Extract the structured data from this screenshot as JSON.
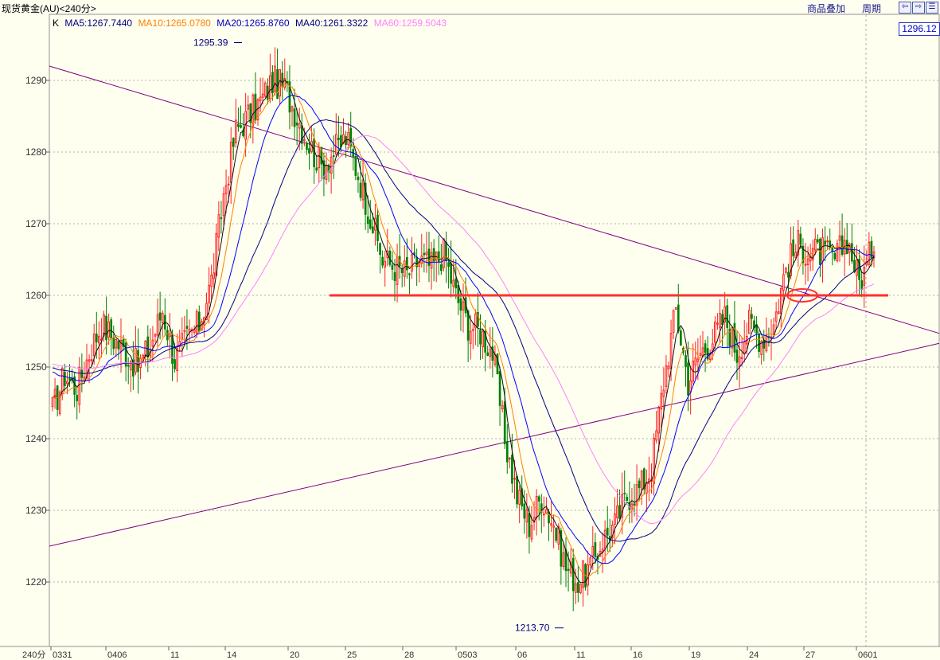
{
  "header": {
    "title": "现货黄金(AU)<240分>",
    "overlay_label": "商品叠加",
    "period_label": "周期",
    "nav_buttons": [
      "⇦",
      "⇨",
      "☰"
    ]
  },
  "legend": {
    "k_label": "K",
    "ma5": "MA5:1267.7440",
    "ma10": "MA10:1265.0780",
    "ma20": "MA20:1265.8760",
    "ma40": "MA40:1261.3322",
    "ma60": "MA60:1259.5043"
  },
  "colors": {
    "up": "#ff2020",
    "down": "#008000",
    "ma5": "#101010",
    "ma10": "#ff8000",
    "ma20": "#0000ff",
    "ma40": "#000080",
    "ma60": "#ff80ff",
    "trendline": "#800080",
    "support": "#ff3030",
    "grid": "#b0b0b0",
    "axis_text": "#333333"
  },
  "current_price": "1296.12",
  "chart_data": {
    "type": "candlestick",
    "title": "",
    "ylim": [
      1212,
      1298
    ],
    "yticks": [
      1220,
      1230,
      1240,
      1250,
      1260,
      1270,
      1280,
      1290
    ],
    "x_first_label": "240分",
    "x_tick_labels": [
      "0331",
      "0406",
      "11",
      "14",
      "20",
      "25",
      "28",
      "0503",
      "06",
      "11",
      "16",
      "19",
      "24",
      "27",
      "0601"
    ],
    "grid": "dashed horizontal",
    "annotations": {
      "high": {
        "label": "1295.39",
        "value": 1295.39
      },
      "low": {
        "label": "1213.70",
        "value": 1213.7
      }
    },
    "horizontal_line": {
      "value": 1260
    },
    "close_anchors": [
      [
        0,
        1244
      ],
      [
        5,
        1249
      ],
      [
        10,
        1247
      ],
      [
        15,
        1252
      ],
      [
        20,
        1256
      ],
      [
        25,
        1254
      ],
      [
        30,
        1252
      ],
      [
        35,
        1250
      ],
      [
        40,
        1253
      ],
      [
        45,
        1258
      ],
      [
        50,
        1251
      ],
      [
        55,
        1254
      ],
      [
        60,
        1256
      ],
      [
        65,
        1262
      ],
      [
        70,
        1274
      ],
      [
        75,
        1283
      ],
      [
        80,
        1285
      ],
      [
        85,
        1287
      ],
      [
        90,
        1290
      ],
      [
        95,
        1289
      ],
      [
        100,
        1285
      ],
      [
        105,
        1281
      ],
      [
        110,
        1278
      ],
      [
        115,
        1280
      ],
      [
        120,
        1282
      ],
      [
        125,
        1277
      ],
      [
        130,
        1271
      ],
      [
        135,
        1265
      ],
      [
        140,
        1264
      ],
      [
        145,
        1263
      ],
      [
        150,
        1265
      ],
      [
        155,
        1264
      ],
      [
        160,
        1266
      ],
      [
        165,
        1260
      ],
      [
        170,
        1256
      ],
      [
        175,
        1255
      ],
      [
        180,
        1252
      ],
      [
        185,
        1240
      ],
      [
        190,
        1232
      ],
      [
        195,
        1228
      ],
      [
        200,
        1232
      ],
      [
        205,
        1228
      ],
      [
        210,
        1222
      ],
      [
        215,
        1220
      ],
      [
        220,
        1222
      ],
      [
        225,
        1226
      ],
      [
        230,
        1228
      ],
      [
        235,
        1232
      ],
      [
        240,
        1233
      ],
      [
        245,
        1236
      ],
      [
        250,
        1248
      ],
      [
        255,
        1258
      ],
      [
        260,
        1248
      ],
      [
        265,
        1252
      ],
      [
        270,
        1254
      ],
      [
        275,
        1257
      ],
      [
        280,
        1252
      ],
      [
        285,
        1256
      ],
      [
        290,
        1254
      ],
      [
        295,
        1256
      ],
      [
        300,
        1264
      ],
      [
        305,
        1267
      ],
      [
        310,
        1266
      ],
      [
        315,
        1266
      ],
      [
        320,
        1265
      ],
      [
        325,
        1268
      ],
      [
        330,
        1262
      ],
      [
        333,
        1264
      ],
      [
        336,
        1268
      ]
    ],
    "ma_start_values": {
      "ma20": 1249.5,
      "ma40": 1250.0,
      "ma60": 1250.5
    }
  }
}
